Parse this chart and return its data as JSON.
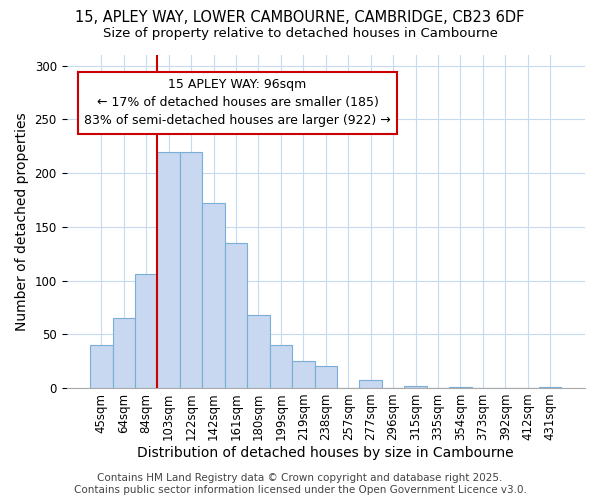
{
  "title_line1": "15, APLEY WAY, LOWER CAMBOURNE, CAMBRIDGE, CB23 6DF",
  "title_line2": "Size of property relative to detached houses in Cambourne",
  "xlabel": "Distribution of detached houses by size in Cambourne",
  "ylabel": "Number of detached properties",
  "categories": [
    "45sqm",
    "64sqm",
    "84sqm",
    "103sqm",
    "122sqm",
    "142sqm",
    "161sqm",
    "180sqm",
    "199sqm",
    "219sqm",
    "238sqm",
    "257sqm",
    "277sqm",
    "296sqm",
    "315sqm",
    "335sqm",
    "354sqm",
    "373sqm",
    "392sqm",
    "412sqm",
    "431sqm"
  ],
  "values": [
    40,
    65,
    106,
    220,
    220,
    172,
    135,
    68,
    40,
    25,
    20,
    0,
    7,
    0,
    2,
    0,
    1,
    0,
    0,
    0,
    1
  ],
  "bar_color": "#c8d8f0",
  "bar_edge_color": "#7aaed6",
  "vline_color": "#cc0000",
  "annotation_text_line1": "15 APLEY WAY: 96sqm",
  "annotation_text_line2": "← 17% of detached houses are smaller (185)",
  "annotation_text_line3": "83% of semi-detached houses are larger (922) →",
  "annotation_box_color": "#ffffff",
  "annotation_box_edge_color": "#cc0000",
  "ylim": [
    0,
    310
  ],
  "yticks": [
    0,
    50,
    100,
    150,
    200,
    250,
    300
  ],
  "footer_line1": "Contains HM Land Registry data © Crown copyright and database right 2025.",
  "footer_line2": "Contains public sector information licensed under the Open Government Licence v3.0.",
  "title_fontsize": 10.5,
  "subtitle_fontsize": 9.5,
  "axis_label_fontsize": 10,
  "tick_fontsize": 8.5,
  "annotation_fontsize": 9,
  "footer_fontsize": 7.5,
  "fig_width": 6.0,
  "fig_height": 5.0,
  "fig_dpi": 100,
  "background_color": "#ffffff",
  "grid_color": "#c8daf0"
}
